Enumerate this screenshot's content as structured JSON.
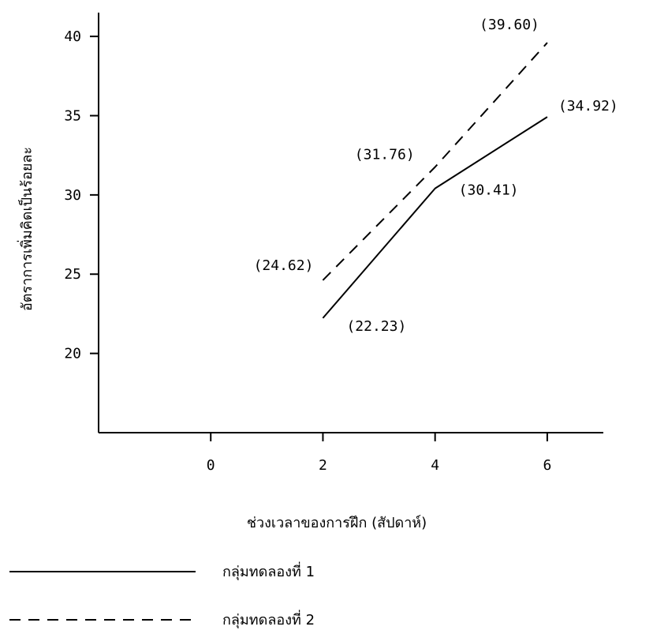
{
  "chart_data": {
    "type": "line",
    "xlabel": "ช่วงเวลาของการฝึก (สัปดาห์)",
    "ylabel": "อัตราการเพิ่มคิดเป็นร้อยละ",
    "x_ticks": [
      "0",
      "2",
      "4",
      "6"
    ],
    "y_ticks": [
      "20",
      "25",
      "30",
      "35",
      "40"
    ],
    "xlim": [
      -2,
      7
    ],
    "ylim": [
      15,
      41.5
    ],
    "x": [
      2,
      4,
      6
    ],
    "series": [
      {
        "name": "กลุ่มทดลองที่ 1",
        "style": "solid",
        "values": [
          22.23,
          30.41,
          34.92
        ],
        "labels": [
          "(22.23)",
          "(30.41)",
          "(34.92)"
        ]
      },
      {
        "name": "กลุ่มทดลองที่ 2",
        "style": "dashed",
        "values": [
          24.62,
          31.76,
          39.6
        ],
        "labels": [
          "(24.62)",
          "(31.76)",
          "(39.60)"
        ]
      }
    ],
    "grid": false,
    "legend_position": "bottom-left",
    "colors": {
      "line": "#000000",
      "background": "#ffffff"
    }
  }
}
